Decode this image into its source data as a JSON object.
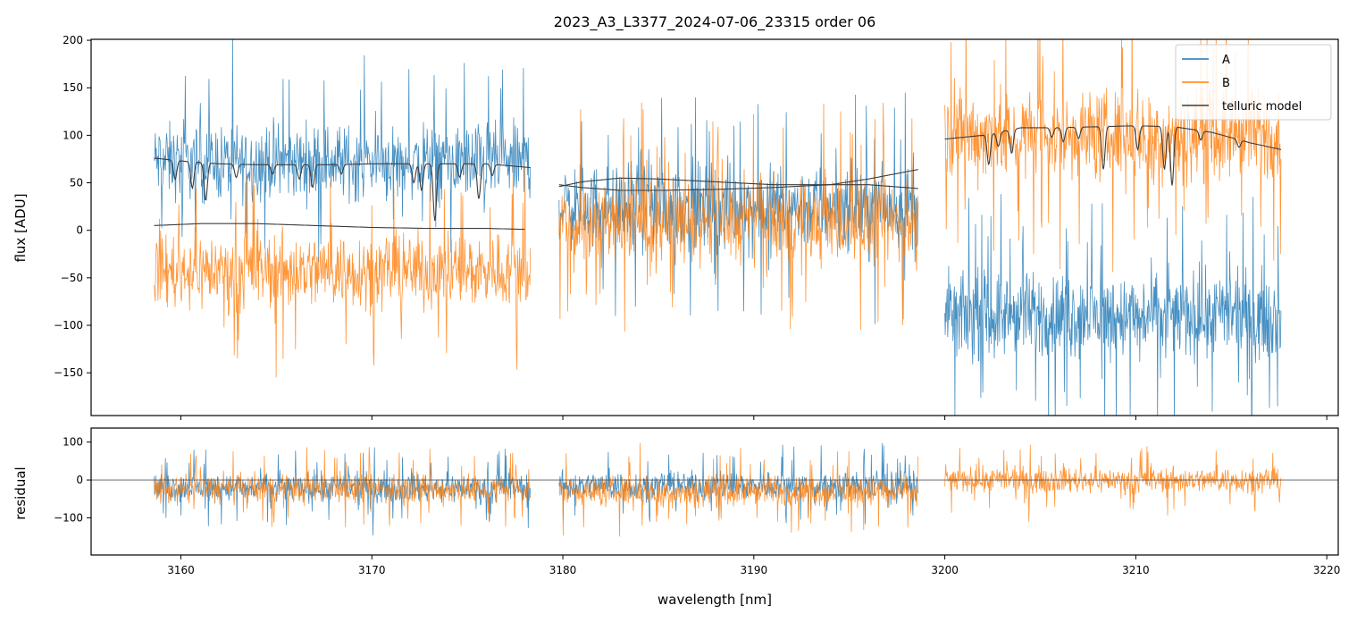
{
  "chart_data": [
    {
      "panel": "top",
      "type": "line",
      "title": "2023_A3_L3377_2024-07-06_23315  order 06",
      "xlabel": "",
      "ylabel": "flux [ADU]",
      "xlim": [
        3155.3,
        3220.6
      ],
      "ylim": [
        -195,
        201
      ],
      "x_ticks": [
        3160,
        3170,
        3180,
        3190,
        3200,
        3210,
        3220
      ],
      "y_ticks": [
        -150,
        -100,
        -50,
        0,
        50,
        100,
        150,
        200
      ],
      "y_tick_labels": [
        "−150",
        "−100",
        "−50",
        "0",
        "50",
        "100",
        "150",
        "200"
      ],
      "legend": {
        "position": "top-right",
        "entries": [
          "A",
          "B",
          "telluric model"
        ]
      },
      "segments": [
        {
          "x_range": [
            3158.6,
            3178.3
          ],
          "A": {
            "mean": 72,
            "amp": 58
          },
          "B": {
            "mean": -42,
            "amp": 58
          }
        },
        {
          "x_range": [
            3179.8,
            3198.6
          ],
          "A": {
            "mean": 25,
            "amp": 65
          },
          "B": {
            "mean": 8,
            "amp": 62
          }
        },
        {
          "x_range": [
            3200.0,
            3217.6
          ],
          "A": {
            "mean": -90,
            "amp": 65
          },
          "B": {
            "mean": 100,
            "amp": 70
          }
        }
      ],
      "series": [
        {
          "name": "A",
          "color": "#1f77b4"
        },
        {
          "name": "B",
          "color": "#ff7f0e"
        },
        {
          "name": "telluric model",
          "color": "#3d3d3d",
          "curves": [
            {
              "x": [
                3158.6,
                3160,
                3162,
                3164,
                3166,
                3168,
                3170,
                3172,
                3174,
                3176,
                3178.3
              ],
              "y": [
                76,
                73,
                70,
                69,
                69,
                69,
                70,
                70,
                70,
                70,
                66
              ],
              "dips": [
                [
                  3159.7,
                  20
                ],
                [
                  3160.6,
                  28
                ],
                [
                  3161.3,
                  40
                ],
                [
                  3162.9,
                  14
                ],
                [
                  3164.8,
                  10
                ],
                [
                  3166.2,
                  15
                ],
                [
                  3166.9,
                  24
                ],
                [
                  3168.4,
                  10
                ],
                [
                  3172.2,
                  20
                ],
                [
                  3172.6,
                  28
                ],
                [
                  3173.3,
                  60
                ],
                [
                  3174.6,
                  14
                ],
                [
                  3175.6,
                  37
                ],
                [
                  3176.3,
                  12
                ]
              ]
            },
            {
              "x": [
                3158.6,
                3161,
                3164,
                3167,
                3170,
                3173,
                3176,
                3178.0
              ],
              "y": [
                5,
                7,
                7,
                5,
                3,
                2,
                2,
                1
              ],
              "dips": []
            },
            {
              "x": [
                3179.8,
                3181,
                3183,
                3185,
                3188,
                3191,
                3194,
                3196,
                3198.6
              ],
              "y": [
                48,
                45,
                42,
                42,
                43,
                45,
                48,
                54,
                64
              ],
              "dips": []
            },
            {
              "x": [
                3179.8,
                3181,
                3183,
                3185,
                3188,
                3191,
                3194,
                3196,
                3198.6
              ],
              "y": [
                46,
                51,
                55,
                54,
                51,
                48,
                48,
                48,
                44
              ],
              "dips": []
            },
            {
              "x": [
                3200.0,
                3202,
                3204,
                3206,
                3208,
                3210,
                3212,
                3214,
                3216,
                3217.6
              ],
              "y": [
                96,
                100,
                108,
                108,
                109,
                110,
                109,
                103,
                92,
                85
              ],
              "dips": [
                [
                  3202.3,
                  32
                ],
                [
                  3202.8,
                  15
                ],
                [
                  3203.5,
                  25
                ],
                [
                  3205.6,
                  10
                ],
                [
                  3206.2,
                  15
                ],
                [
                  3207.0,
                  12
                ],
                [
                  3208.3,
                  45
                ],
                [
                  3210.1,
                  25
                ],
                [
                  3211.5,
                  45
                ],
                [
                  3211.9,
                  62
                ],
                [
                  3213.4,
                  10
                ],
                [
                  3215.4,
                  8
                ]
              ]
            }
          ]
        }
      ]
    },
    {
      "panel": "bottom",
      "type": "line",
      "xlabel": "wavelength [nm]",
      "ylabel": "residual",
      "xlim": [
        3155.3,
        3220.6
      ],
      "ylim": [
        -198,
        137
      ],
      "x_ticks": [
        3160,
        3170,
        3180,
        3190,
        3200,
        3210,
        3220
      ],
      "x_tick_labels": [
        "3160",
        "3170",
        "3180",
        "3190",
        "3200",
        "3210",
        "3220"
      ],
      "y_ticks": [
        -100,
        0,
        100
      ],
      "y_tick_labels": [
        "−100",
        "0",
        "100"
      ],
      "hline_y": 0,
      "segments": [
        {
          "x_range": [
            3158.6,
            3178.3
          ],
          "A": {
            "mean": -20,
            "amp": 55
          },
          "B": {
            "mean": -25,
            "amp": 55
          }
        },
        {
          "x_range": [
            3179.8,
            3198.6
          ],
          "A": {
            "mean": -15,
            "amp": 55
          },
          "B": {
            "mean": -30,
            "amp": 58
          }
        },
        {
          "x_range": [
            3200.0,
            3217.6
          ],
          "B": {
            "mean": 0,
            "amp": 48
          }
        }
      ],
      "series": [
        {
          "name": "A",
          "color": "#1f77b4"
        },
        {
          "name": "B",
          "color": "#ff7f0e"
        }
      ]
    }
  ]
}
